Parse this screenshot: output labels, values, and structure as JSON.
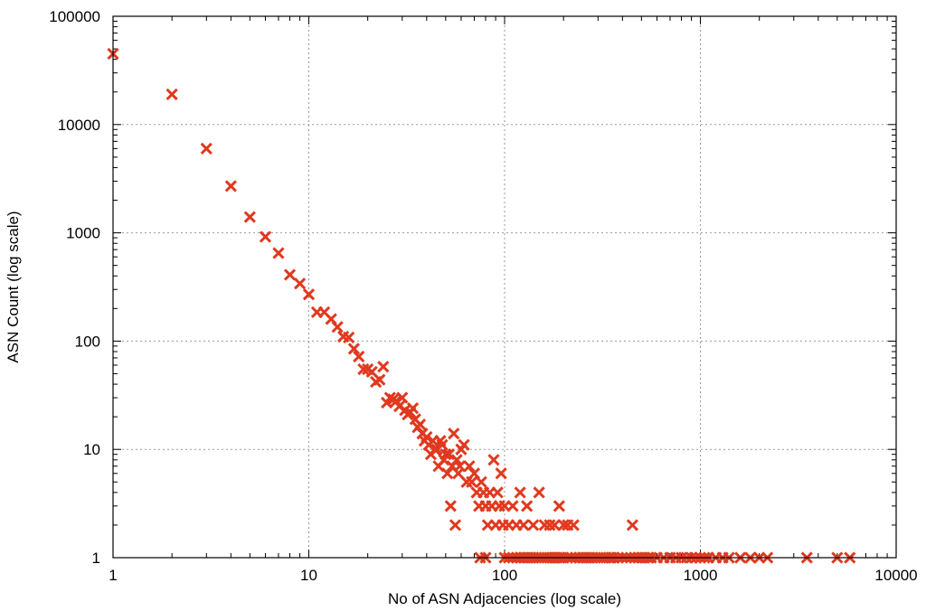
{
  "chart_data": {
    "type": "scatter",
    "xlabel": "No of ASN Adjacencies (log scale)",
    "ylabel": "ASN Count (log scale)",
    "xscale": "log",
    "yscale": "log",
    "xlim": [
      1,
      10000
    ],
    "ylim": [
      1,
      100000
    ],
    "grid": true,
    "marker": "x",
    "color": "#e0391f",
    "x_ticks": [
      {
        "value": 1,
        "label": "1"
      },
      {
        "value": 10,
        "label": "10"
      },
      {
        "value": 100,
        "label": "100"
      },
      {
        "value": 1000,
        "label": "1000"
      },
      {
        "value": 10000,
        "label": "10000"
      }
    ],
    "y_ticks": [
      {
        "value": 1,
        "label": "1"
      },
      {
        "value": 10,
        "label": "10"
      },
      {
        "value": 100,
        "label": "100"
      },
      {
        "value": 1000,
        "label": "1000"
      },
      {
        "value": 10000,
        "label": "10000"
      },
      {
        "value": 100000,
        "label": "100000"
      }
    ],
    "points": [
      [
        1,
        45000
      ],
      [
        2,
        19000
      ],
      [
        3,
        6000
      ],
      [
        4,
        2700
      ],
      [
        5,
        1400
      ],
      [
        6,
        920
      ],
      [
        7,
        650
      ],
      [
        8,
        410
      ],
      [
        9,
        340
      ],
      [
        10,
        270
      ],
      [
        11,
        185
      ],
      [
        12,
        185
      ],
      [
        13,
        160
      ],
      [
        14,
        135
      ],
      [
        15,
        110
      ],
      [
        16,
        108
      ],
      [
        17,
        85
      ],
      [
        18,
        72
      ],
      [
        19,
        55
      ],
      [
        20,
        55
      ],
      [
        21,
        52
      ],
      [
        22,
        42
      ],
      [
        23,
        44
      ],
      [
        24,
        58
      ],
      [
        25,
        27
      ],
      [
        26,
        30
      ],
      [
        27,
        29
      ],
      [
        28,
        28
      ],
      [
        29,
        25
      ],
      [
        30,
        30
      ],
      [
        31,
        23
      ],
      [
        32,
        21
      ],
      [
        33,
        22
      ],
      [
        34,
        24
      ],
      [
        35,
        19
      ],
      [
        36,
        16
      ],
      [
        37,
        17
      ],
      [
        38,
        14
      ],
      [
        39,
        12
      ],
      [
        40,
        13
      ],
      [
        41,
        11
      ],
      [
        42,
        9
      ],
      [
        43,
        12
      ],
      [
        44,
        10
      ],
      [
        45,
        10
      ],
      [
        46,
        7
      ],
      [
        47,
        12
      ],
      [
        48,
        11
      ],
      [
        49,
        8
      ],
      [
        50,
        9
      ],
      [
        51,
        6
      ],
      [
        52,
        9
      ],
      [
        53,
        3
      ],
      [
        54,
        7
      ],
      [
        55,
        14
      ],
      [
        56,
        2
      ],
      [
        57,
        8
      ],
      [
        58,
        6
      ],
      [
        59,
        7
      ],
      [
        60,
        10
      ],
      [
        62,
        11
      ],
      [
        64,
        5
      ],
      [
        66,
        7
      ],
      [
        68,
        5
      ],
      [
        70,
        6
      ],
      [
        72,
        4
      ],
      [
        74,
        3
      ],
      [
        75,
        1
      ],
      [
        76,
        5
      ],
      [
        78,
        4
      ],
      [
        80,
        3
      ],
      [
        80,
        1
      ],
      [
        82,
        2
      ],
      [
        84,
        4
      ],
      [
        86,
        3
      ],
      [
        88,
        8
      ],
      [
        90,
        2
      ],
      [
        92,
        4
      ],
      [
        94,
        3
      ],
      [
        96,
        6
      ],
      [
        98,
        2
      ],
      [
        100,
        3
      ],
      [
        100,
        1
      ],
      [
        105,
        2
      ],
      [
        110,
        3
      ],
      [
        115,
        2
      ],
      [
        120,
        4
      ],
      [
        125,
        2
      ],
      [
        130,
        3
      ],
      [
        140,
        2
      ],
      [
        150,
        4
      ],
      [
        160,
        2
      ],
      [
        170,
        2
      ],
      [
        180,
        2
      ],
      [
        190,
        3
      ],
      [
        200,
        2
      ],
      [
        210,
        2
      ],
      [
        225,
        2
      ],
      [
        450,
        2
      ],
      [
        105,
        1
      ],
      [
        110,
        1
      ],
      [
        115,
        1
      ],
      [
        120,
        1
      ],
      [
        125,
        1
      ],
      [
        130,
        1
      ],
      [
        135,
        1
      ],
      [
        140,
        1
      ],
      [
        145,
        1
      ],
      [
        150,
        1
      ],
      [
        155,
        1
      ],
      [
        160,
        1
      ],
      [
        165,
        1
      ],
      [
        170,
        1
      ],
      [
        175,
        1
      ],
      [
        180,
        1
      ],
      [
        185,
        1
      ],
      [
        190,
        1
      ],
      [
        195,
        1
      ],
      [
        200,
        1
      ],
      [
        210,
        1
      ],
      [
        220,
        1
      ],
      [
        230,
        1
      ],
      [
        240,
        1
      ],
      [
        250,
        1
      ],
      [
        260,
        1
      ],
      [
        270,
        1
      ],
      [
        280,
        1
      ],
      [
        290,
        1
      ],
      [
        300,
        1
      ],
      [
        310,
        1
      ],
      [
        320,
        1
      ],
      [
        330,
        1
      ],
      [
        340,
        1
      ],
      [
        350,
        1
      ],
      [
        360,
        1
      ],
      [
        380,
        1
      ],
      [
        400,
        1
      ],
      [
        420,
        1
      ],
      [
        440,
        1
      ],
      [
        460,
        1
      ],
      [
        480,
        1
      ],
      [
        500,
        1
      ],
      [
        520,
        1
      ],
      [
        540,
        1
      ],
      [
        560,
        1
      ],
      [
        600,
        1
      ],
      [
        650,
        1
      ],
      [
        700,
        1
      ],
      [
        750,
        1
      ],
      [
        800,
        1
      ],
      [
        850,
        1
      ],
      [
        900,
        1
      ],
      [
        950,
        1
      ],
      [
        1000,
        1
      ],
      [
        1050,
        1
      ],
      [
        1100,
        1
      ],
      [
        1200,
        1
      ],
      [
        1300,
        1
      ],
      [
        1400,
        1
      ],
      [
        1600,
        1
      ],
      [
        1800,
        1
      ],
      [
        2000,
        1
      ],
      [
        2200,
        1
      ],
      [
        3500,
        1
      ],
      [
        5000,
        1
      ],
      [
        5800,
        1
      ]
    ]
  }
}
